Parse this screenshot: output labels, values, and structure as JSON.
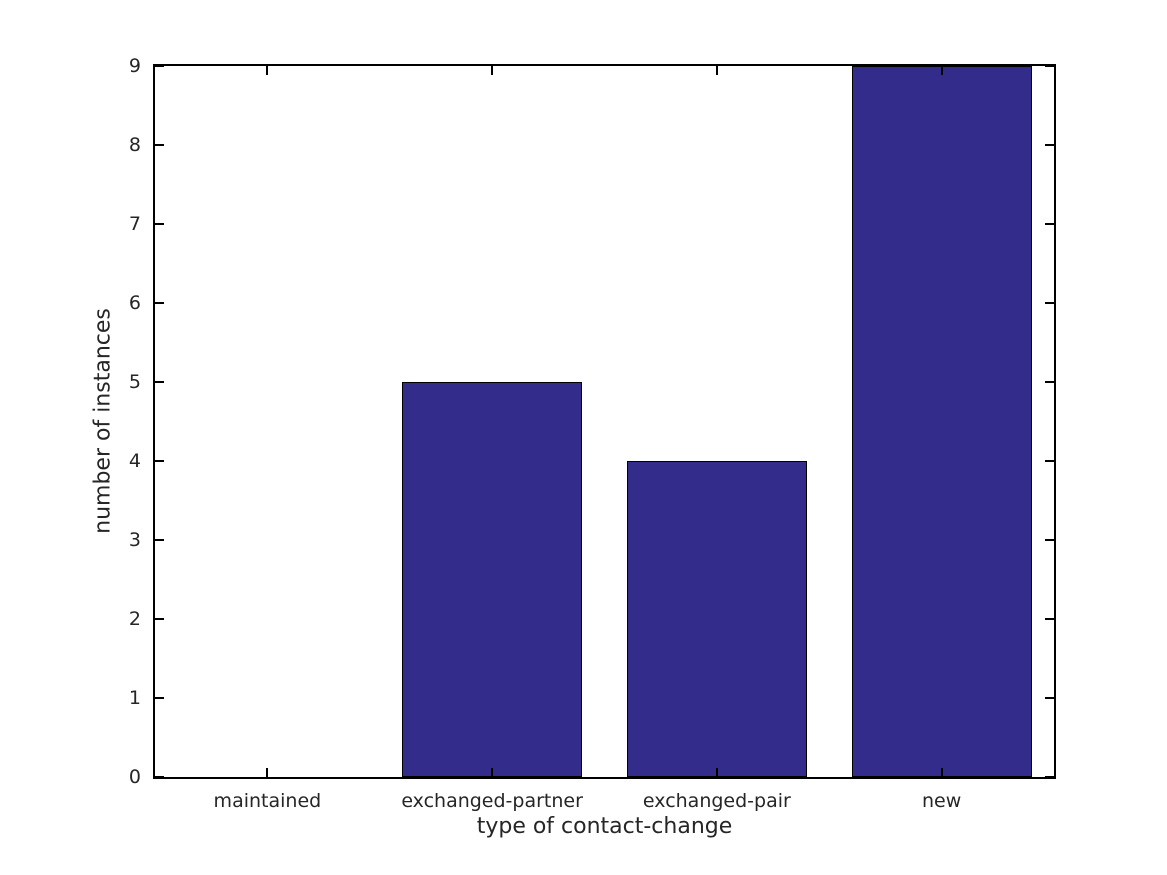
{
  "chart_data": {
    "type": "bar",
    "categories": [
      "maintained",
      "exchanged-partner",
      "exchanged-pair",
      "new"
    ],
    "values": [
      0,
      5,
      4,
      9
    ],
    "title": "",
    "xlabel": "type of contact-change",
    "ylabel": "number of instances",
    "ylim": [
      0,
      9
    ],
    "yticks": [
      0,
      1,
      2,
      3,
      4,
      5,
      6,
      7,
      8,
      9
    ],
    "bar_width_fraction": 0.8,
    "bar_color": "#342c8a",
    "bar_edge_color": "#000000",
    "spine_color": "#000000",
    "text_color": "#262626",
    "background_color": "#ffffff",
    "grid": false,
    "tick_direction": "in",
    "ticks_on_all_sides": true,
    "legend": null
  }
}
